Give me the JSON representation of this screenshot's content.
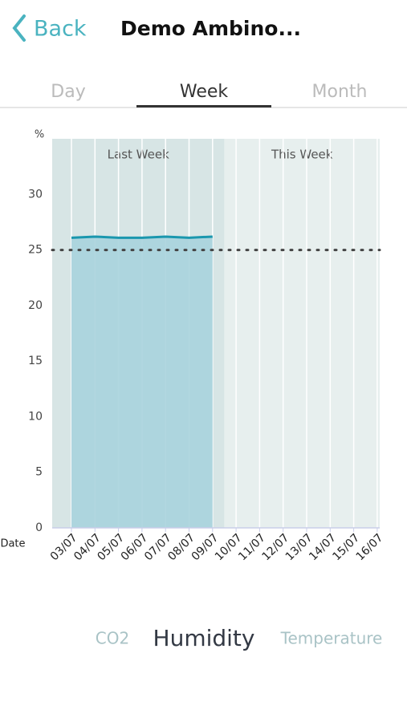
{
  "header": {
    "back": "Back",
    "title": "Demo Ambino..."
  },
  "tabs": {
    "items": [
      "Day",
      "Week",
      "Month"
    ],
    "selected": "Week"
  },
  "chart_data": {
    "type": "area",
    "y_label": "%",
    "x_label": "Date",
    "categories": [
      "03/07",
      "04/07",
      "05/07",
      "06/07",
      "07/07",
      "08/07",
      "09/07",
      "10/07",
      "11/07",
      "12/07",
      "13/07",
      "14/07",
      "15/07",
      "16/07"
    ],
    "series": [
      {
        "name": "Humidity",
        "color": "#1a97ae",
        "fill": "#a9d3dd",
        "values": [
          26.1,
          26.2,
          26.1,
          26.1,
          26.2,
          26.1,
          26.2,
          null,
          null,
          null,
          null,
          null,
          null,
          null
        ]
      }
    ],
    "ylim": [
      0,
      35
    ],
    "yticks": [
      0,
      5,
      10,
      15,
      20,
      25,
      30
    ],
    "reference_line": 25,
    "regions": [
      {
        "label": "Last Week",
        "start": "03/07",
        "end": "09/07",
        "color": "#d7e5e5"
      },
      {
        "label": "This Week",
        "start": "10/07",
        "end": "16/07",
        "color": "#e7efee"
      }
    ]
  },
  "sensors": {
    "items": [
      "CO2",
      "Humidity",
      "Temperature"
    ],
    "selected": "Humidity"
  }
}
